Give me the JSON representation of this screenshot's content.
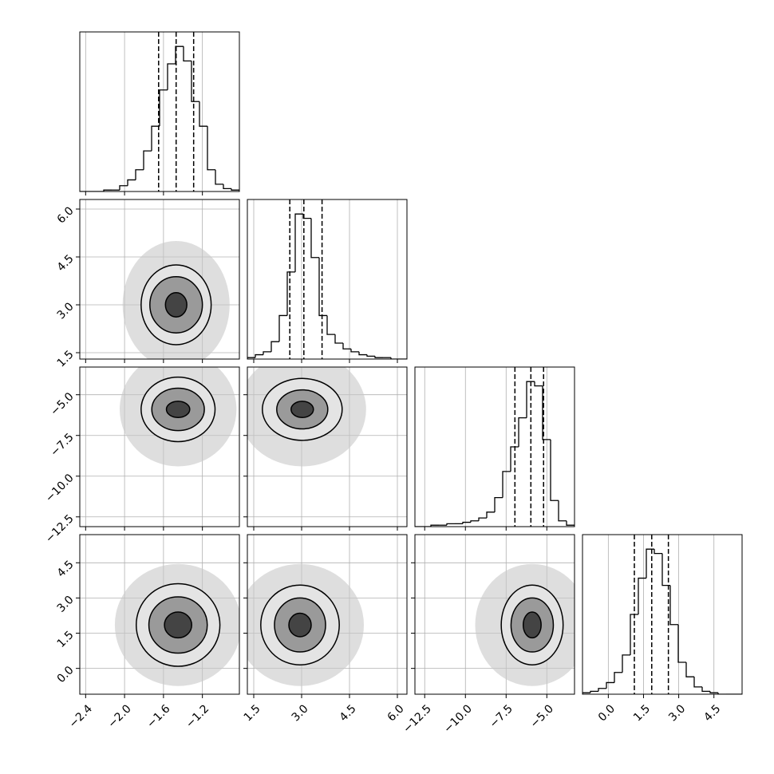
{
  "chart_data": {
    "type": "corner",
    "color": "#000000",
    "scatter_color": "#c8c8c8",
    "grid": true,
    "hist_ylim": [
      0,
      110
    ],
    "params": [
      {
        "range": [
          -2.46,
          -0.82
        ],
        "ticks": [
          {
            "value": -2.4,
            "label": "−2.4"
          },
          {
            "value": -2.0,
            "label": "−2.0"
          },
          {
            "value": -1.6,
            "label": "−1.6"
          },
          {
            "value": -1.2,
            "label": "−1.2"
          }
        ],
        "quantiles": [
          -1.65,
          -1.47,
          -1.29
        ],
        "bins": [
          -2.46,
          -2.378,
          -2.296,
          -2.214,
          -2.132,
          -2.05,
          -1.968,
          -1.886,
          -1.804,
          -1.722,
          -1.64,
          -1.558,
          -1.476,
          -1.394,
          -1.312,
          -1.23,
          -1.148,
          -1.066,
          -0.984,
          -0.902,
          -0.82
        ],
        "counts": [
          0,
          0,
          0,
          1,
          1,
          4,
          8,
          15,
          28,
          45,
          70,
          88,
          100,
          90,
          62,
          45,
          15,
          5,
          2,
          1
        ]
      },
      {
        "range": [
          1.3,
          6.3
        ],
        "ticks": [
          1.5,
          {
            "value": 3,
            "label": "3.0"
          },
          4.5,
          {
            "value": 6,
            "label": "6.0"
          }
        ],
        "quantiles": [
          2.63,
          3.07,
          3.64
        ],
        "bins": [
          1.3,
          1.55,
          1.8,
          2.05,
          2.3,
          2.55,
          2.8,
          3.05,
          3.3,
          3.55,
          3.8,
          4.05,
          4.3,
          4.55,
          4.8,
          5.05,
          5.3,
          5.55,
          5.8,
          6.05,
          6.3
        ],
        "counts": [
          1,
          3,
          5,
          12,
          30,
          60,
          100,
          97,
          70,
          30,
          17,
          11,
          7,
          5,
          3,
          2,
          1,
          1,
          0,
          0
        ]
      },
      {
        "range": [
          -13.1,
          -3.3
        ],
        "ticks": [
          {
            "value": -12.5,
            "label": "−12.5"
          },
          {
            "value": -10,
            "label": "−10.0"
          },
          {
            "value": -7.5,
            "label": "−7.5"
          },
          {
            "value": -5,
            "label": "−5.0"
          }
        ],
        "quantiles": [
          -6.96,
          -5.98,
          -5.2
        ],
        "bins": [
          -13.1,
          -12.61,
          -12.12,
          -11.63,
          -11.14,
          -10.65,
          -10.16,
          -9.67,
          -9.18,
          -8.69,
          -8.2,
          -7.71,
          -7.22,
          -6.73,
          -6.24,
          -5.75,
          -5.26,
          -4.77,
          -4.28,
          -3.79,
          -3.3
        ],
        "counts": [
          0,
          0,
          1,
          1,
          2,
          2,
          3,
          4,
          6,
          10,
          20,
          38,
          55,
          75,
          100,
          97,
          60,
          18,
          4,
          1
        ]
      },
      {
        "range": [
          -1.1,
          5.7
        ],
        "ticks": [
          {
            "value": 0,
            "label": "0.0"
          },
          1.5,
          {
            "value": 3,
            "label": "3.0"
          },
          4.5
        ],
        "quantiles": [
          1.11,
          1.85,
          2.56
        ],
        "bins": [
          -1.1,
          -0.76,
          -0.42,
          -0.08,
          0.26,
          0.6,
          0.94,
          1.28,
          1.62,
          1.96,
          2.3,
          2.64,
          2.98,
          3.32,
          3.66,
          4.0,
          4.34,
          4.68,
          5.02,
          5.36,
          5.7
        ],
        "counts": [
          1,
          2,
          4,
          8,
          15,
          27,
          55,
          80,
          100,
          97,
          75,
          48,
          22,
          12,
          5,
          2,
          1,
          0,
          0,
          0
        ]
      }
    ],
    "panels": [
      {
        "x": 0,
        "y": 1,
        "center": [
          -1.47,
          3.0
        ],
        "radii": [
          [
            0.55,
            2.0
          ],
          [
            0.36,
            1.25
          ],
          [
            0.27,
            0.88
          ],
          [
            0.11,
            0.38
          ]
        ]
      },
      {
        "x": 0,
        "y": 2,
        "center": [
          -1.45,
          -5.9
        ],
        "radii": [
          [
            0.6,
            3.5
          ],
          [
            0.38,
            1.98
          ],
          [
            0.27,
            1.3
          ],
          [
            0.12,
            0.5
          ]
        ]
      },
      {
        "x": 1,
        "y": 2,
        "center": [
          3.02,
          -5.9
        ],
        "radii": [
          [
            2.0,
            3.5
          ],
          [
            1.25,
            1.9
          ],
          [
            0.8,
            1.2
          ],
          [
            0.35,
            0.5
          ]
        ]
      },
      {
        "x": 0,
        "y": 3,
        "center": [
          -1.45,
          1.85
        ],
        "radii": [
          [
            0.65,
            2.6
          ],
          [
            0.43,
            1.76
          ],
          [
            0.3,
            1.2
          ],
          [
            0.14,
            0.55
          ]
        ]
      },
      {
        "x": 1,
        "y": 3,
        "center": [
          2.95,
          1.85
        ],
        "radii": [
          [
            2.0,
            2.6
          ],
          [
            1.23,
            1.7
          ],
          [
            0.8,
            1.15
          ],
          [
            0.35,
            0.5
          ]
        ]
      },
      {
        "x": 2,
        "y": 3,
        "center": [
          -5.9,
          1.85
        ],
        "radii": [
          [
            3.5,
            2.6
          ],
          [
            1.9,
            1.7
          ],
          [
            1.3,
            1.15
          ],
          [
            0.55,
            0.55
          ]
        ]
      }
    ]
  }
}
